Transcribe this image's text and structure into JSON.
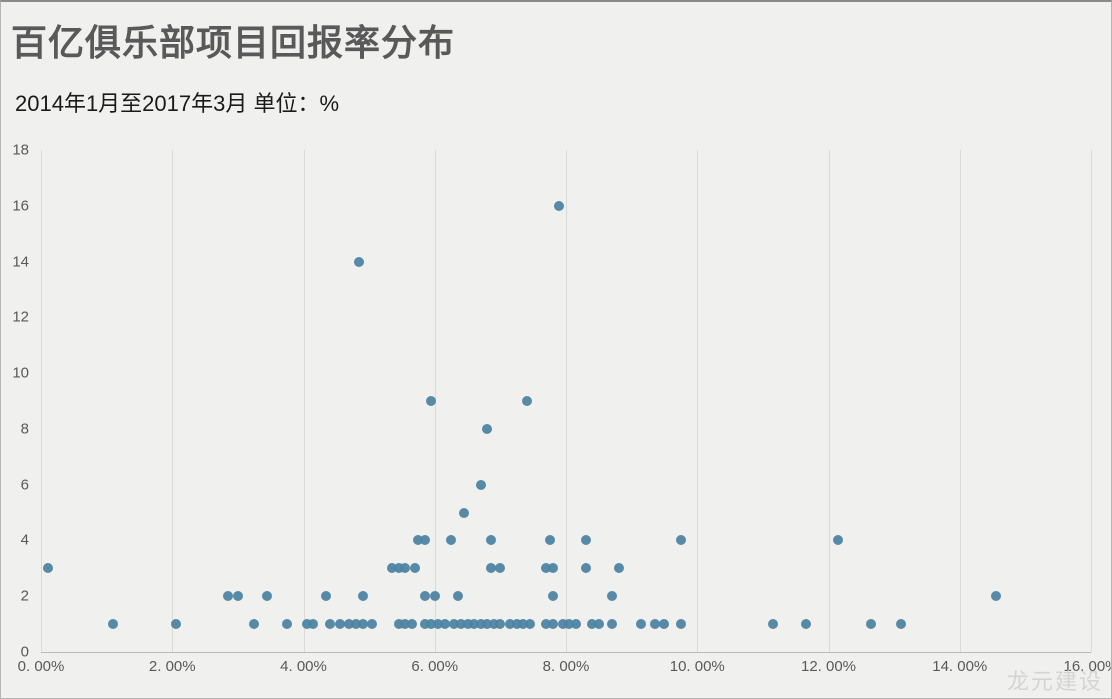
{
  "title": "百亿俱乐部项目回报率分布",
  "subtitle": "2014年1月至2017年3月  单位：%",
  "watermark": "龙元建设",
  "chart_data": {
    "type": "scatter",
    "title": "百亿俱乐部项目回报率分布",
    "subtitle": "2014年1月至2017年3月  单位：%",
    "xlabel": "",
    "ylabel": "",
    "xlim": [
      0,
      16
    ],
    "ylim": [
      0,
      18
    ],
    "x_tick_labels": [
      "0. 00%",
      "2. 00%",
      "4. 00%",
      "6. 00%",
      "8. 00%",
      "10. 00%",
      "12. 00%",
      "14. 00%",
      "16. 00%"
    ],
    "y_tick_labels": [
      0,
      2,
      4,
      6,
      8,
      10,
      12,
      14,
      16,
      18
    ],
    "grid": "vertical-only",
    "legend": "none",
    "point_color": "#4e84a2",
    "points": [
      [
        7.9,
        16
      ],
      [
        4.85,
        14
      ],
      [
        5.95,
        9
      ],
      [
        7.4,
        9
      ],
      [
        6.8,
        8
      ],
      [
        6.7,
        6
      ],
      [
        6.45,
        5
      ],
      [
        5.75,
        4
      ],
      [
        5.85,
        4
      ],
      [
        6.25,
        4
      ],
      [
        6.85,
        4
      ],
      [
        7.75,
        4
      ],
      [
        8.3,
        4
      ],
      [
        9.75,
        4
      ],
      [
        12.15,
        4
      ],
      [
        0.1,
        3
      ],
      [
        5.35,
        3
      ],
      [
        5.45,
        3
      ],
      [
        5.55,
        3
      ],
      [
        5.7,
        3
      ],
      [
        6.85,
        3
      ],
      [
        7.0,
        3
      ],
      [
        7.7,
        3
      ],
      [
        7.8,
        3
      ],
      [
        8.3,
        3
      ],
      [
        8.8,
        3
      ],
      [
        2.85,
        2
      ],
      [
        3.0,
        2
      ],
      [
        3.45,
        2
      ],
      [
        4.35,
        2
      ],
      [
        4.9,
        2
      ],
      [
        5.85,
        2
      ],
      [
        6.0,
        2
      ],
      [
        6.35,
        2
      ],
      [
        7.8,
        2
      ],
      [
        8.7,
        2
      ],
      [
        14.55,
        2
      ],
      [
        1.1,
        1
      ],
      [
        2.05,
        1
      ],
      [
        3.25,
        1
      ],
      [
        3.75,
        1
      ],
      [
        4.05,
        1
      ],
      [
        4.15,
        1
      ],
      [
        4.4,
        1
      ],
      [
        4.55,
        1
      ],
      [
        4.7,
        1
      ],
      [
        4.8,
        1
      ],
      [
        4.9,
        1
      ],
      [
        5.05,
        1
      ],
      [
        5.45,
        1
      ],
      [
        5.55,
        1
      ],
      [
        5.65,
        1
      ],
      [
        5.85,
        1
      ],
      [
        5.95,
        1
      ],
      [
        6.05,
        1
      ],
      [
        6.15,
        1
      ],
      [
        6.3,
        1
      ],
      [
        6.4,
        1
      ],
      [
        6.5,
        1
      ],
      [
        6.6,
        1
      ],
      [
        6.7,
        1
      ],
      [
        6.8,
        1
      ],
      [
        6.9,
        1
      ],
      [
        7.0,
        1
      ],
      [
        7.15,
        1
      ],
      [
        7.25,
        1
      ],
      [
        7.35,
        1
      ],
      [
        7.45,
        1
      ],
      [
        7.7,
        1
      ],
      [
        7.8,
        1
      ],
      [
        7.95,
        1
      ],
      [
        8.05,
        1
      ],
      [
        8.15,
        1
      ],
      [
        8.4,
        1
      ],
      [
        8.5,
        1
      ],
      [
        8.7,
        1
      ],
      [
        9.15,
        1
      ],
      [
        9.35,
        1
      ],
      [
        9.5,
        1
      ],
      [
        9.75,
        1
      ],
      [
        11.15,
        1
      ],
      [
        11.65,
        1
      ],
      [
        12.65,
        1
      ],
      [
        13.1,
        1
      ]
    ]
  }
}
